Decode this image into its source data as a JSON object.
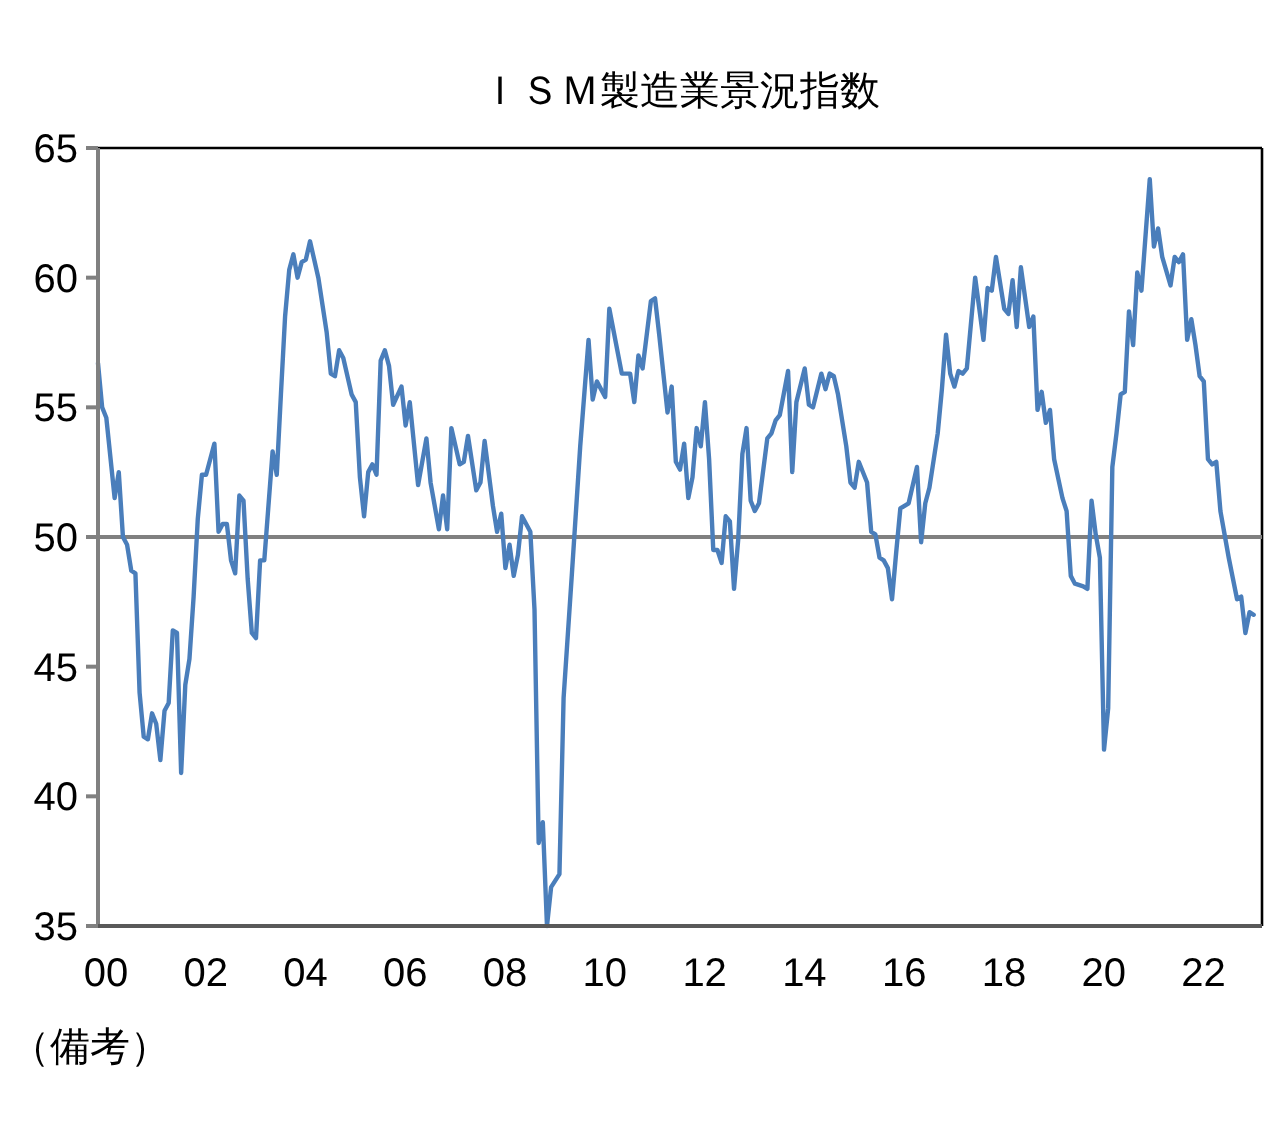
{
  "chart_data": {
    "type": "line",
    "title": "ＩＳＭ製造業景況指数",
    "annotations": [
      "（備考）"
    ],
    "xlim": [
      "2000-01",
      "2023-05"
    ],
    "ylim": [
      35,
      65
    ],
    "yticks": [
      35,
      40,
      45,
      50,
      55,
      60,
      65
    ],
    "xticks": [
      {
        "value": "2000-01",
        "label": "00"
      },
      {
        "value": "2002-01",
        "label": "02"
      },
      {
        "value": "2004-01",
        "label": "04"
      },
      {
        "value": "2006-01",
        "label": "06"
      },
      {
        "value": "2008-01",
        "label": "08"
      },
      {
        "value": "2010-01",
        "label": "10"
      },
      {
        "value": "2012-01",
        "label": "12"
      },
      {
        "value": "2014-01",
        "label": "14"
      },
      {
        "value": "2016-01",
        "label": "16"
      },
      {
        "value": "2018-01",
        "label": "18"
      },
      {
        "value": "2020-01",
        "label": "20"
      },
      {
        "value": "2022-01",
        "label": "22"
      }
    ],
    "grid": false,
    "marker": "none",
    "line_style": "solid",
    "ref_lines": [
      {
        "axis": "y",
        "value": 50,
        "color": "#808080"
      }
    ],
    "series": [
      {
        "color": "#4a7ebb",
        "x": [
          "2000-01",
          "2000-02",
          "2000-03",
          "2000-05",
          "2000-06",
          "2000-07",
          "2000-08",
          "2000-09",
          "2000-10",
          "2000-11",
          "2000-12",
          "2001-01",
          "2001-02",
          "2001-03",
          "2001-04",
          "2001-05",
          "2001-06",
          "2001-07",
          "2001-08",
          "2001-09",
          "2001-10",
          "2001-11",
          "2001-12",
          "2002-01",
          "2002-02",
          "2002-03",
          "2002-05",
          "2002-06",
          "2002-07",
          "2002-08",
          "2002-09",
          "2002-10",
          "2002-11",
          "2002-12",
          "2003-01",
          "2003-02",
          "2003-03",
          "2003-04",
          "2003-05",
          "2003-07",
          "2003-08",
          "2003-09",
          "2003-10",
          "2003-11",
          "2003-12",
          "2004-01",
          "2004-02",
          "2004-03",
          "2004-04",
          "2004-05",
          "2004-06",
          "2004-08",
          "2004-09",
          "2004-10",
          "2004-11",
          "2004-12",
          "2005-02",
          "2005-03",
          "2005-04",
          "2005-05",
          "2005-06",
          "2005-07",
          "2005-08",
          "2005-09",
          "2005-10",
          "2005-11",
          "2005-12",
          "2006-02",
          "2006-03",
          "2006-04",
          "2006-06",
          "2006-08",
          "2006-09",
          "2006-11",
          "2006-12",
          "2007-01",
          "2007-02",
          "2007-04",
          "2007-05",
          "2007-06",
          "2007-08",
          "2007-09",
          "2007-10",
          "2007-12",
          "2008-01",
          "2008-02",
          "2008-03",
          "2008-04",
          "2008-05",
          "2008-06",
          "2008-07",
          "2008-09",
          "2008-10",
          "2008-11",
          "2008-12",
          "2009-01",
          "2009-02",
          "2009-04",
          "2009-05",
          "2009-07",
          "2009-09",
          "2009-11",
          "2009-12",
          "2010-01",
          "2010-03",
          "2010-04",
          "2010-07",
          "2010-09",
          "2010-10",
          "2010-11",
          "2010-12",
          "2011-02",
          "2011-03",
          "2011-04",
          "2011-06",
          "2011-07",
          "2011-08",
          "2011-09",
          "2011-10",
          "2011-11",
          "2011-12",
          "2012-01",
          "2012-02",
          "2012-03",
          "2012-04",
          "2012-05",
          "2012-06",
          "2012-07",
          "2012-08",
          "2012-09",
          "2012-10",
          "2012-11",
          "2012-12",
          "2013-01",
          "2013-02",
          "2013-03",
          "2013-04",
          "2013-06",
          "2013-07",
          "2013-08",
          "2013-09",
          "2013-11",
          "2013-12",
          "2014-01",
          "2014-03",
          "2014-04",
          "2014-05",
          "2014-07",
          "2014-08",
          "2014-09",
          "2014-10",
          "2014-11",
          "2015-01",
          "2015-02",
          "2015-03",
          "2015-04",
          "2015-06",
          "2015-07",
          "2015-08",
          "2015-09",
          "2015-10",
          "2015-11",
          "2015-12",
          "2016-01",
          "2016-02",
          "2016-04",
          "2016-06",
          "2016-07",
          "2016-08",
          "2016-09",
          "2016-11",
          "2016-12",
          "2017-01",
          "2017-02",
          "2017-03",
          "2017-04",
          "2017-05",
          "2017-06",
          "2017-08",
          "2017-10",
          "2017-11",
          "2017-12",
          "2018-01",
          "2018-03",
          "2018-04",
          "2018-05",
          "2018-06",
          "2018-07",
          "2018-09",
          "2018-10",
          "2018-11",
          "2018-12",
          "2019-01",
          "2019-02",
          "2019-03",
          "2019-05",
          "2019-06",
          "2019-07",
          "2019-08",
          "2019-10",
          "2019-11",
          "2019-12",
          "2020-01",
          "2020-02",
          "2020-03",
          "2020-04",
          "2020-05",
          "2020-06",
          "2020-07",
          "2020-08",
          "2020-09",
          "2020-10",
          "2020-11",
          "2020-12",
          "2021-02",
          "2021-03",
          "2021-04",
          "2021-05",
          "2021-07",
          "2021-08",
          "2021-09",
          "2021-10",
          "2021-11",
          "2021-12",
          "2022-01",
          "2022-02",
          "2022-03",
          "2022-04",
          "2022-05",
          "2022-06",
          "2022-07",
          "2022-09",
          "2022-10",
          "2022-11",
          "2022-12",
          "2023-01",
          "2023-02",
          "2023-03"
        ],
        "values": [
          56.7,
          55.0,
          54.6,
          51.5,
          52.5,
          50.0,
          49.7,
          48.7,
          48.6,
          44.0,
          42.3,
          42.2,
          43.2,
          42.8,
          41.4,
          43.3,
          43.6,
          46.4,
          46.3,
          40.9,
          44.3,
          45.3,
          47.7,
          50.7,
          52.4,
          52.4,
          53.6,
          50.2,
          50.5,
          50.5,
          49.1,
          48.6,
          51.6,
          51.4,
          48.4,
          46.3,
          46.1,
          49.1,
          49.1,
          53.3,
          52.4,
          55.5,
          58.5,
          60.3,
          60.9,
          60.0,
          60.6,
          60.7,
          61.4,
          60.7,
          60.0,
          57.9,
          56.3,
          56.2,
          57.2,
          56.9,
          55.5,
          55.2,
          52.3,
          50.8,
          52.5,
          52.8,
          52.4,
          56.8,
          57.2,
          56.6,
          55.1,
          55.8,
          54.3,
          55.2,
          52.0,
          53.8,
          52.1,
          50.3,
          51.6,
          50.3,
          54.2,
          52.8,
          52.9,
          53.9,
          51.8,
          52.1,
          53.7,
          51.2,
          50.2,
          50.9,
          48.8,
          49.7,
          48.5,
          49.3,
          50.8,
          50.2,
          47.2,
          38.2,
          39.0,
          35.0,
          36.5,
          37.0,
          43.8,
          48.6,
          53.5,
          57.6,
          55.3,
          56.0,
          55.4,
          58.8,
          56.3,
          56.3,
          55.2,
          57.0,
          56.5,
          59.1,
          59.2,
          57.8,
          54.8,
          55.8,
          52.9,
          52.6,
          53.6,
          51.5,
          52.3,
          54.2,
          53.5,
          55.2,
          53.0,
          49.5,
          49.5,
          49.0,
          50.8,
          50.6,
          48.0,
          49.9,
          53.2,
          54.2,
          51.4,
          51.0,
          51.3,
          53.8,
          54.0,
          54.5,
          54.7,
          56.4,
          52.5,
          55.2,
          56.5,
          55.1,
          55.0,
          56.3,
          55.7,
          56.3,
          56.2,
          55.5,
          53.5,
          52.1,
          51.9,
          52.9,
          52.1,
          50.2,
          50.1,
          49.2,
          49.1,
          48.8,
          47.6,
          49.4,
          51.1,
          51.3,
          52.7,
          49.8,
          51.3,
          51.9,
          54.0,
          55.7,
          57.8,
          56.3,
          55.8,
          56.4,
          56.3,
          56.5,
          60.0,
          57.6,
          59.6,
          59.5,
          60.8,
          58.8,
          58.6,
          59.9,
          58.1,
          60.4,
          58.1,
          58.5,
          54.9,
          55.6,
          54.4,
          54.9,
          53.0,
          51.5,
          51.0,
          48.5,
          48.2,
          48.1,
          48.0,
          51.4,
          50.1,
          49.2,
          41.8,
          43.4,
          52.7,
          54.0,
          55.5,
          55.6,
          58.7,
          57.4,
          60.2,
          59.5,
          63.8,
          61.2,
          61.9,
          60.8,
          59.7,
          60.8,
          60.6,
          60.9,
          57.6,
          58.4,
          57.4,
          56.2,
          56.0,
          53.0,
          52.8,
          52.9,
          51.0,
          49.2,
          48.4,
          47.6,
          47.7,
          46.3,
          47.1,
          47.0
        ]
      }
    ]
  }
}
